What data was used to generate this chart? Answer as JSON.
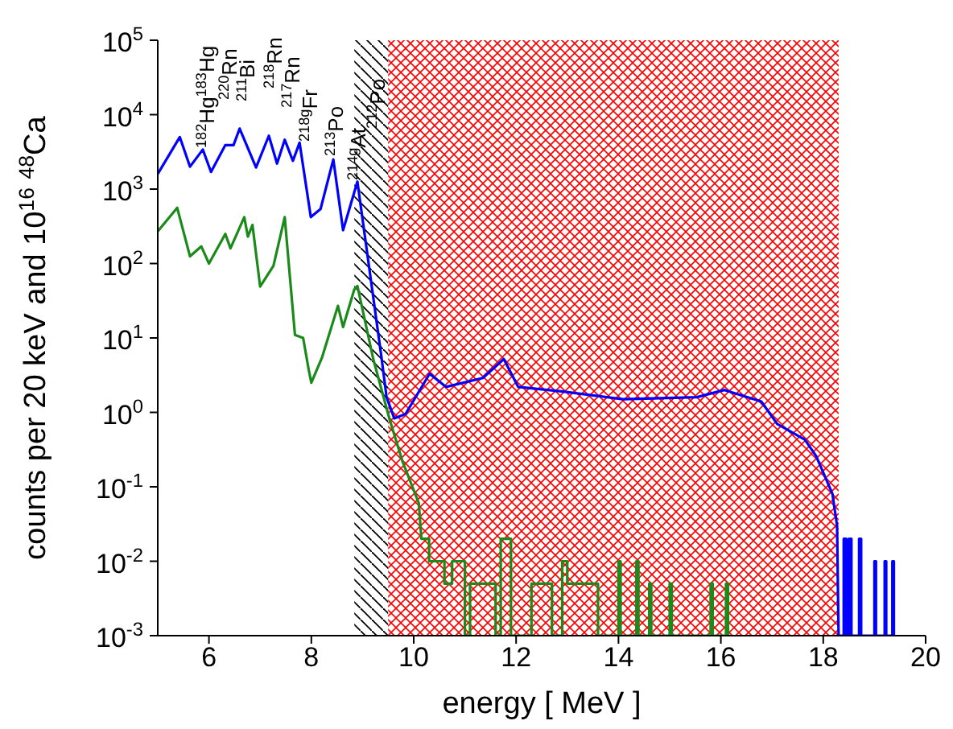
{
  "chart_data": {
    "type": "line",
    "xlabel": "energy [ MeV ]",
    "ylabel": "counts per 20 keV and 10$^{16}$ $^{48}$Ca",
    "xlim": [
      5,
      20
    ],
    "xticks": [
      6,
      8,
      10,
      12,
      14,
      16,
      18,
      20
    ],
    "log": true,
    "ylim": [
      0.001,
      100000
    ],
    "yticks": [
      {
        "value": 0.001,
        "label": "10$^{-3}$"
      },
      {
        "value": 0.01,
        "label": "10$^{-2}$"
      },
      {
        "value": 0.1,
        "label": "10$^{-1}$"
      },
      {
        "value": 1,
        "label": "10$^{0}$"
      },
      {
        "value": 10,
        "label": "10$^{1}$"
      },
      {
        "value": 100,
        "label": "10$^{2}$"
      },
      {
        "value": 1000,
        "label": "10$^{3}$"
      },
      {
        "value": 10000,
        "label": "10$^{4}$"
      },
      {
        "value": 100000,
        "label": "10$^{5}$"
      }
    ],
    "bands": [
      {
        "axis": "x",
        "from": 8.84,
        "to": 9.5,
        "color": "#000000"
      },
      {
        "axis": "x",
        "from": 9.5,
        "to": 18.3,
        "color": "#ff0000"
      }
    ],
    "series": [
      {
        "color": "#0000ff",
        "x": [
          5,
          5.43,
          5.63,
          5.88,
          6.04,
          6.32,
          6.48,
          6.6,
          6.92,
          7.17,
          7.33,
          7.48,
          7.64,
          7.77,
          7.99,
          8.18,
          8.43,
          8.62,
          8.9,
          9.37,
          9.47,
          9.62,
          9.84,
          10.31,
          10.63,
          11.35,
          11.76,
          12.04,
          12.92,
          14.09,
          15.53,
          16.07,
          16.79,
          17.1,
          17.64,
          17.86,
          18.18,
          18.27,
          18.3,
          18.4,
          18.4,
          18.45,
          18.45,
          18.5,
          18.5,
          18.55,
          18.55,
          18.7,
          18.7,
          18.74,
          18.74,
          19.0,
          19.0,
          19.03,
          19.03,
          19.2,
          19.2,
          19.23,
          19.23,
          19.35,
          19.35,
          19.38,
          19.38
        ],
        "values": [
          1600,
          5000,
          2000,
          3400,
          1700,
          3900,
          3900,
          6500,
          1950,
          5200,
          2200,
          4600,
          2400,
          4200,
          420,
          540,
          2500,
          280,
          1260,
          5.5,
          1.6,
          0.83,
          0.95,
          3.3,
          2.2,
          2.9,
          5.2,
          2.2,
          1.9,
          1.5,
          1.6,
          2.0,
          1.4,
          0.7,
          0.43,
          0.26,
          0.08,
          0.03,
          0.001,
          0.001,
          0.02,
          0.02,
          0.001,
          0.001,
          0.02,
          0.02,
          0.001,
          0.001,
          0.02,
          0.02,
          0.001,
          0.001,
          0.01,
          0.01,
          0.001,
          0.001,
          0.01,
          0.01,
          0.001,
          0.001,
          0.01,
          0.01,
          0.001
        ]
      },
      {
        "color": "#1a8a1a",
        "x": [
          5,
          5.38,
          5.63,
          5.85,
          6.0,
          6.32,
          6.42,
          6.69,
          6.76,
          6.85,
          7.0,
          7.26,
          7.48,
          7.68,
          7.84,
          7.95,
          8.0,
          8.21,
          8.52,
          8.62,
          8.84,
          8.9,
          9.21,
          9.53,
          9.78,
          10.1,
          10.15,
          10.3,
          10.3,
          10.6,
          10.6,
          10.75,
          10.75,
          11.0,
          11.0,
          11.1,
          11.1,
          11.6,
          11.6,
          11.7,
          11.7,
          11.9,
          11.9,
          12.3,
          12.3,
          12.7,
          12.7,
          12.9,
          12.9,
          13.0,
          13.0,
          13.6,
          13.6,
          14.0,
          14.0,
          14.04,
          14.04,
          14.35,
          14.35,
          14.39,
          14.39,
          14.6,
          14.6,
          14.64,
          14.64,
          15.0,
          15.0,
          15.04,
          15.04,
          15.8,
          15.8,
          15.84,
          15.84,
          16.1,
          16.1,
          16.14,
          16.14
        ],
        "values": [
          270,
          560,
          125,
          170,
          100,
          250,
          160,
          420,
          230,
          330,
          49,
          93,
          420,
          11,
          10,
          3.7,
          2.5,
          5.5,
          27,
          14,
          45,
          50,
          5.2,
          0.8,
          0.22,
          0.06,
          0.02,
          0.02,
          0.01,
          0.01,
          0.005,
          0.005,
          0.01,
          0.01,
          0.001,
          0.001,
          0.005,
          0.005,
          0.001,
          0.001,
          0.02,
          0.02,
          0.001,
          0.001,
          0.005,
          0.005,
          0.001,
          0.001,
          0.01,
          0.01,
          0.005,
          0.005,
          0.001,
          0.001,
          0.01,
          0.01,
          0.001,
          0.001,
          0.01,
          0.01,
          0.001,
          0.001,
          0.005,
          0.005,
          0.001,
          0.001,
          0.005,
          0.005,
          0.001,
          0.001,
          0.005,
          0.005,
          0.001,
          0.001,
          0.005,
          0.005,
          0.001
        ]
      }
    ],
    "annotations": [
      "$^{182}$Hg$^{183}$Hg",
      "$^{220}$Rn",
      "$^{211}$Bi",
      "$^{218}$Rn",
      "$^{217}$Rn",
      "$^{218g}$Fr",
      "$^{213}$Po",
      "$^{214g}$At",
      "$^{212}$Po"
    ]
  }
}
